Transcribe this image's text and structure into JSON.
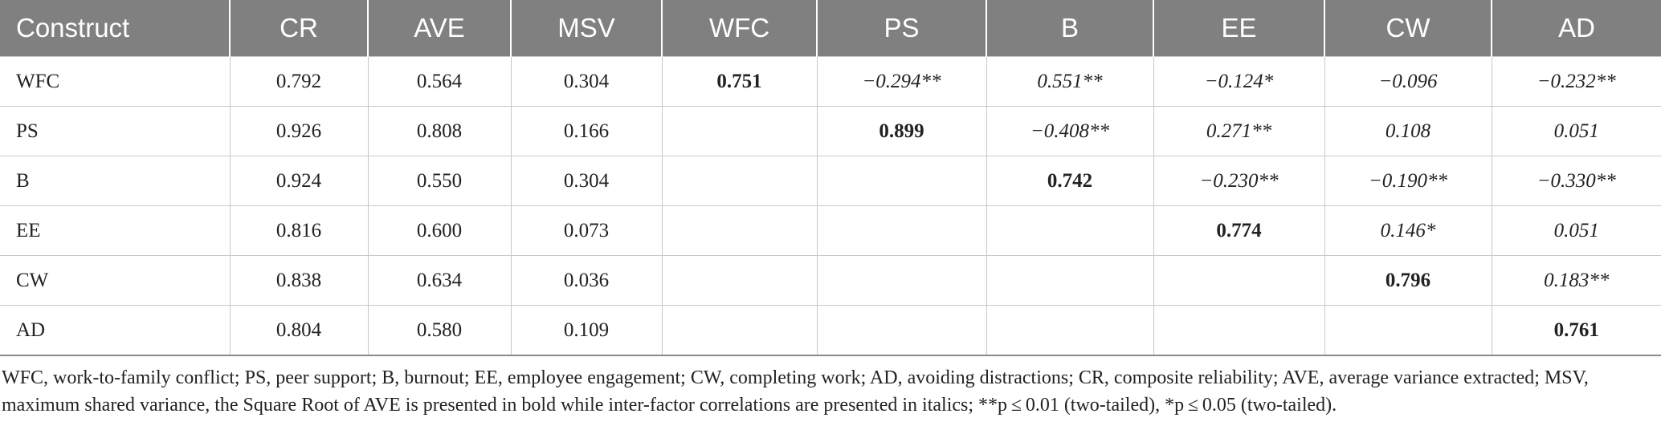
{
  "table": {
    "headers": [
      "Construct",
      "CR",
      "AVE",
      "MSV",
      "WFC",
      "PS",
      "B",
      "EE",
      "CW",
      "AD"
    ],
    "rows": [
      [
        {
          "text": "WFC"
        },
        {
          "text": "0.792"
        },
        {
          "text": "0.564"
        },
        {
          "text": "0.304"
        },
        {
          "text": "0.751",
          "style": "bold"
        },
        {
          "text": "−0.294**",
          "style": "italic"
        },
        {
          "text": "0.551**",
          "style": "italic"
        },
        {
          "text": "−0.124*",
          "style": "italic"
        },
        {
          "text": "−0.096",
          "style": "italic"
        },
        {
          "text": "−0.232**",
          "style": "italic"
        }
      ],
      [
        {
          "text": "PS"
        },
        {
          "text": "0.926"
        },
        {
          "text": "0.808"
        },
        {
          "text": "0.166"
        },
        {
          "text": ""
        },
        {
          "text": "0.899",
          "style": "bold"
        },
        {
          "text": "−0.408**",
          "style": "italic"
        },
        {
          "text": "0.271**",
          "style": "italic"
        },
        {
          "text": "0.108",
          "style": "italic"
        },
        {
          "text": "0.051",
          "style": "italic"
        }
      ],
      [
        {
          "text": "B"
        },
        {
          "text": "0.924"
        },
        {
          "text": "0.550"
        },
        {
          "text": "0.304"
        },
        {
          "text": ""
        },
        {
          "text": ""
        },
        {
          "text": "0.742",
          "style": "bold"
        },
        {
          "text": "−0.230**",
          "style": "italic"
        },
        {
          "text": "−0.190**",
          "style": "italic"
        },
        {
          "text": "−0.330**",
          "style": "italic"
        }
      ],
      [
        {
          "text": "EE"
        },
        {
          "text": "0.816"
        },
        {
          "text": "0.600"
        },
        {
          "text": "0.073"
        },
        {
          "text": ""
        },
        {
          "text": ""
        },
        {
          "text": ""
        },
        {
          "text": "0.774",
          "style": "bold"
        },
        {
          "text": "0.146*",
          "style": "italic"
        },
        {
          "text": "0.051",
          "style": "italic"
        }
      ],
      [
        {
          "text": "CW"
        },
        {
          "text": "0.838"
        },
        {
          "text": "0.634"
        },
        {
          "text": "0.036"
        },
        {
          "text": ""
        },
        {
          "text": ""
        },
        {
          "text": ""
        },
        {
          "text": ""
        },
        {
          "text": "0.796",
          "style": "bold"
        },
        {
          "text": "0.183**",
          "style": "italic"
        }
      ],
      [
        {
          "text": "AD"
        },
        {
          "text": "0.804"
        },
        {
          "text": "0.580"
        },
        {
          "text": "0.109"
        },
        {
          "text": ""
        },
        {
          "text": ""
        },
        {
          "text": ""
        },
        {
          "text": ""
        },
        {
          "text": ""
        },
        {
          "text": "0.761",
          "style": "bold"
        }
      ]
    ]
  },
  "footnote": "WFC, work-to-family conflict; PS, peer support; B, burnout; EE, employee engagement; CW, completing work; AD, avoiding distractions; CR, composite reliability; AVE, average variance extracted; MSV, maximum shared variance, the Square Root of AVE is presented in bold while inter-factor correlations are presented in italics; **p ≤ 0.01 (two-tailed), *p ≤ 0.05 (two-tailed)."
}
